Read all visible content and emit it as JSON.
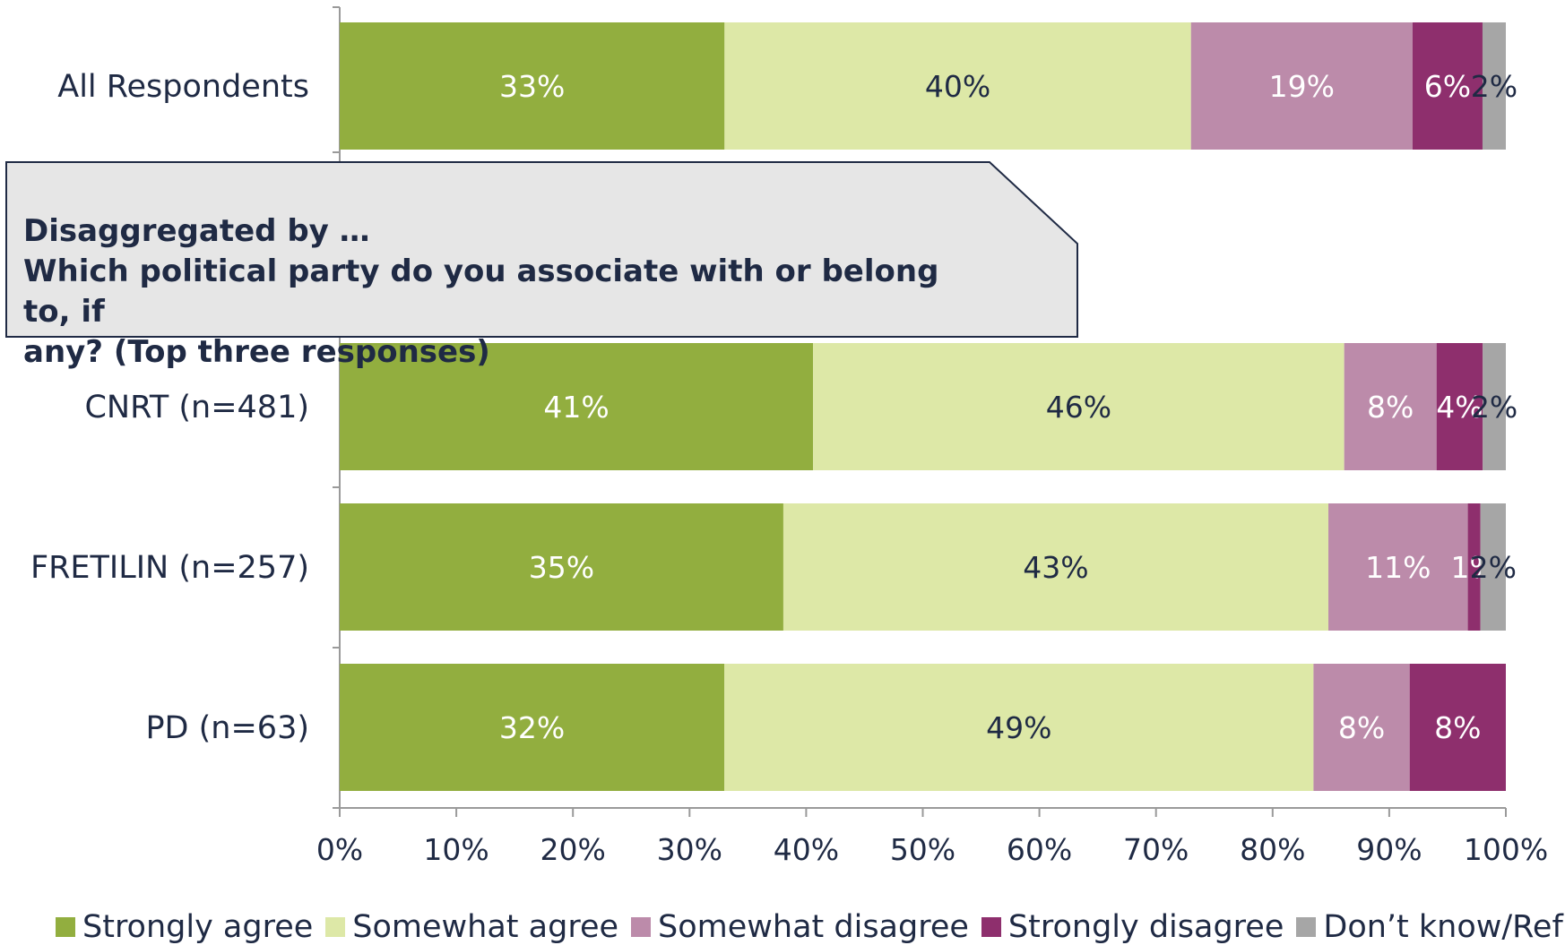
{
  "chart_data": {
    "type": "bar",
    "orientation": "horizontal",
    "stacked": true,
    "categories": [
      "All Respondents",
      "CNRT (n=481)",
      "FRETILIN (n=257)",
      "PD (n=63)"
    ],
    "series": [
      {
        "name": "Strongly agree",
        "color": "#92AE3F",
        "label_color": "#ffffff",
        "values": [
          33,
          41,
          35,
          32
        ],
        "labels": [
          "33%",
          "41%",
          "35%",
          "32%"
        ]
      },
      {
        "name": "Somewhat agree",
        "color": "#DDE8A7",
        "label_color": "#1f2a44",
        "values": [
          40,
          46,
          43,
          49
        ],
        "labels": [
          "40%",
          "46%",
          "43%",
          "49%"
        ]
      },
      {
        "name": "Somewhat disagree",
        "color": "#BC8BAA",
        "label_color": "#ffffff",
        "values": [
          19,
          8,
          11,
          8
        ],
        "labels": [
          "19%",
          "8%",
          "11%",
          "8%"
        ]
      },
      {
        "name": "Strongly disagree",
        "color": "#8E2F6D",
        "label_color": "#ffffff",
        "values": [
          6,
          4,
          1,
          8
        ],
        "labels": [
          "6%",
          "4%",
          "1%",
          "8%"
        ]
      },
      {
        "name": "Don’t know/Refused",
        "color": "#A6A6A6",
        "label_color": "#1f2a44",
        "values": [
          2,
          2,
          2,
          0
        ],
        "labels": [
          "2%",
          "2%",
          "2%",
          ""
        ]
      }
    ],
    "xlim": [
      0,
      100
    ],
    "xticks": [
      "0%",
      "10%",
      "20%",
      "30%",
      "40%",
      "50%",
      "60%",
      "70%",
      "80%",
      "90%",
      "100%"
    ],
    "legend_position": "bottom"
  },
  "annotation": {
    "line1": "Disaggregated by …",
    "line2": "Which political party do you associate with or belong to, if",
    "line3": "any? (Top three responses)"
  }
}
